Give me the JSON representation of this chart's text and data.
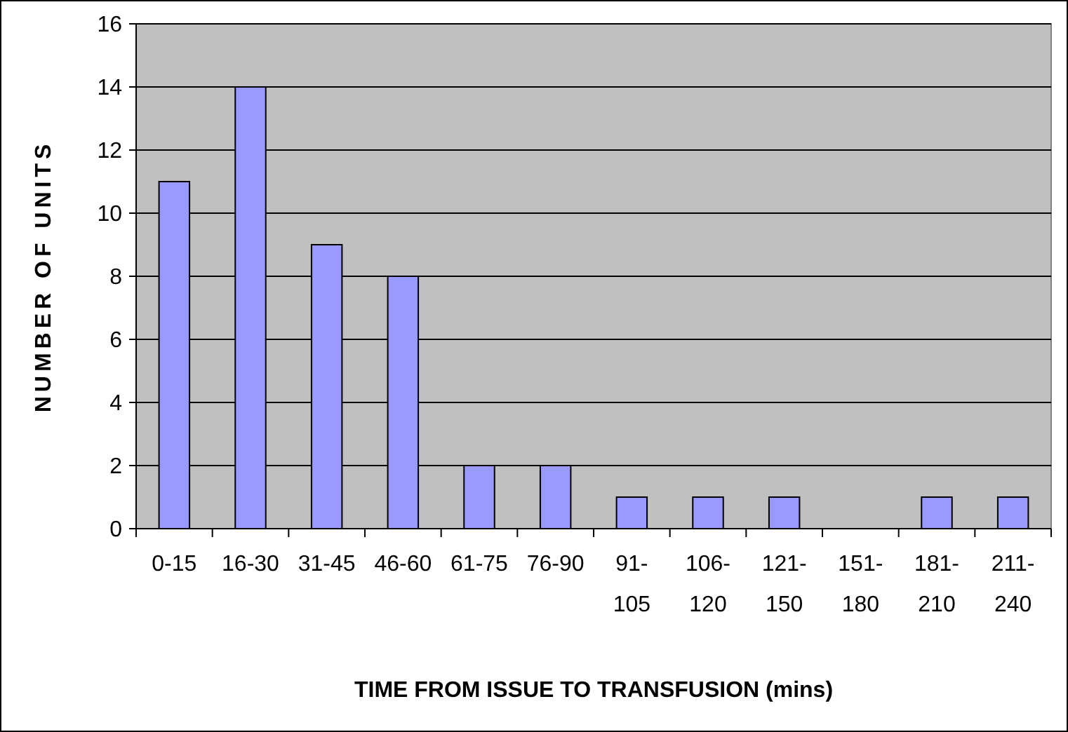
{
  "chart_data": {
    "type": "bar",
    "xlabel": "TIME FROM ISSUE TO TRANSFUSION (mins)",
    "ylabel": "NUMBER OF UNITS",
    "categories": [
      "0-15",
      "16-30",
      "31-45",
      "46-60",
      "61-75",
      "76-90",
      "91-105",
      "106-120",
      "121-150",
      "151-180",
      "181-210",
      "211-240"
    ],
    "values": [
      11,
      14,
      9,
      8,
      2,
      2,
      1,
      1,
      1,
      0,
      1,
      1
    ],
    "color": "#9999ff",
    "ylim": [
      0,
      16
    ],
    "yticks": [
      0,
      2,
      4,
      6,
      8,
      10,
      12,
      14,
      16
    ],
    "grid": "y"
  }
}
